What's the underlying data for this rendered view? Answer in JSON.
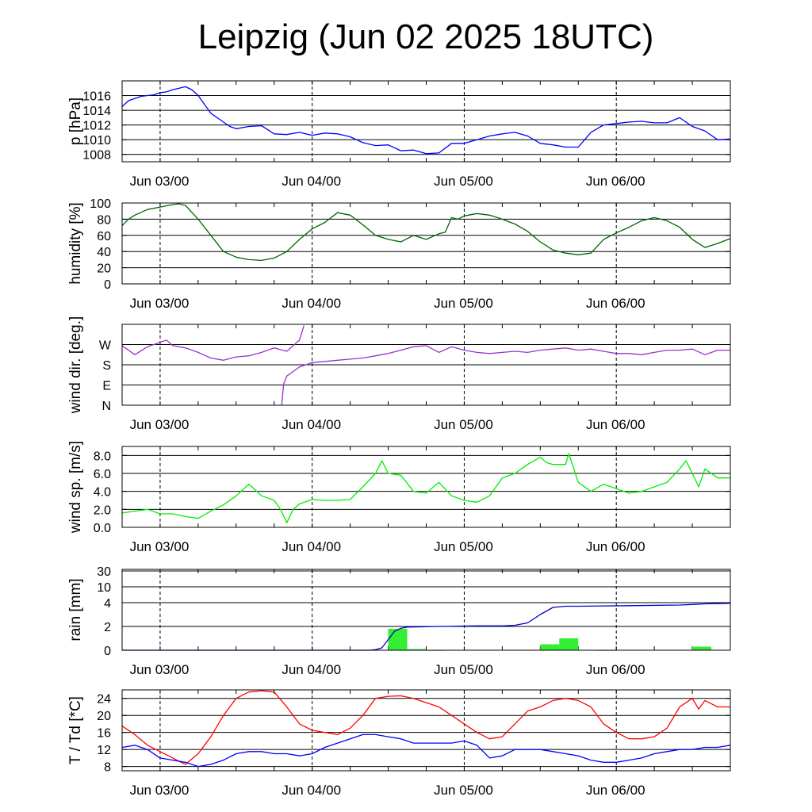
{
  "title": "Leipzig (Jun 02 2025 18UTC)",
  "x_axis": {
    "tick_labels": [
      "Jun 03/00",
      "Jun 04/00",
      "Jun 05/00",
      "Jun 06/00"
    ],
    "x_unit": "hours after Jun 02 18UTC",
    "x_range": [
      0,
      96
    ],
    "major_ticks": [
      6,
      30,
      54,
      78
    ]
  },
  "chart_data": [
    {
      "type": "line",
      "ylabel": "p [hPa]",
      "ylim": [
        1007,
        1018
      ],
      "yticks": [
        1008,
        1010,
        1012,
        1014,
        1016
      ],
      "ytick_labels": [
        "1008",
        "1010",
        "1012",
        "1014",
        "1016"
      ],
      "series": [
        {
          "color": "#0000ff",
          "x": [
            0,
            1,
            2,
            3,
            4,
            5,
            6,
            7,
            8,
            9,
            10,
            11,
            12,
            13,
            14,
            15,
            16,
            17,
            18,
            20,
            22,
            24,
            26,
            28,
            30,
            32,
            34,
            36,
            38,
            40,
            42,
            44,
            46,
            48,
            50,
            52,
            54,
            56,
            58,
            60,
            62,
            64,
            66,
            68,
            70,
            72,
            74,
            76,
            78,
            80,
            82,
            84,
            86,
            88,
            90,
            92,
            94,
            96
          ],
          "y": [
            1014.5,
            1015.3,
            1015.6,
            1015.9,
            1016.0,
            1016.1,
            1016.4,
            1016.5,
            1016.8,
            1017.0,
            1017.2,
            1016.8,
            1016.0,
            1014.8,
            1013.6,
            1013.0,
            1012.4,
            1011.8,
            1011.5,
            1011.8,
            1011.9,
            1010.8,
            1010.7,
            1011.0,
            1010.6,
            1010.9,
            1010.8,
            1010.4,
            1009.6,
            1009.2,
            1009.3,
            1008.5,
            1008.6,
            1008.1,
            1008.2,
            1009.5,
            1009.5,
            1010.0,
            1010.5,
            1010.8,
            1011.0,
            1010.5,
            1009.5,
            1009.3,
            1009.0,
            1009.0,
            1011.0,
            1012.0,
            1012.2,
            1012.4,
            1012.5,
            1012.3,
            1012.3,
            1013.0,
            1011.8,
            1011.2,
            1010.0,
            1010.1
          ]
        }
      ]
    },
    {
      "type": "line",
      "ylabel": "humidity [%]",
      "ylim": [
        0,
        100
      ],
      "yticks": [
        0,
        20,
        40,
        60,
        80,
        100
      ],
      "ytick_labels": [
        "0",
        "20",
        "40",
        "60",
        "80",
        "100"
      ],
      "series": [
        {
          "color": "#006400",
          "x": [
            0,
            1,
            2,
            4,
            6,
            8,
            9,
            10,
            12,
            14,
            16,
            18,
            20,
            22,
            24,
            26,
            28,
            30,
            32,
            34,
            36,
            38,
            40,
            42,
            44,
            46,
            48,
            50,
            51,
            52,
            53,
            54,
            56,
            58,
            60,
            62,
            64,
            66,
            68,
            70,
            72,
            74,
            76,
            78,
            80,
            82,
            84,
            86,
            88,
            90,
            92,
            94,
            96
          ],
          "y": [
            72,
            80,
            85,
            92,
            95,
            98,
            99,
            97,
            80,
            60,
            40,
            33,
            30,
            29,
            32,
            40,
            55,
            68,
            76,
            88,
            85,
            73,
            60,
            55,
            52,
            60,
            55,
            62,
            64,
            82,
            80,
            84,
            87,
            85,
            80,
            74,
            65,
            52,
            42,
            38,
            36,
            38,
            55,
            63,
            70,
            78,
            82,
            78,
            70,
            55,
            45,
            50,
            56
          ]
        }
      ]
    },
    {
      "type": "line",
      "ylabel": "wind dir. [deg.]",
      "ylim": [
        0,
        360
      ],
      "yticks": [
        0,
        90,
        180,
        270
      ],
      "ytick_labels": [
        "N",
        "E",
        "S",
        "W"
      ],
      "series": [
        {
          "color": "#9933cc",
          "segments": [
            {
              "x": [
                0,
                2,
                4,
                6,
                7,
                8,
                10,
                12,
                14,
                16,
                18,
                20,
                22,
                24,
                26,
                28,
                28.7
              ],
              "y": [
                265,
                225,
                260,
                280,
                290,
                265,
                255,
                235,
                210,
                200,
                215,
                220,
                235,
                255,
                240,
                290,
                355
              ]
            },
            {
              "x": [
                25.2,
                25.5,
                26,
                27,
                28,
                30,
                32,
                34,
                36,
                38,
                40,
                42,
                44,
                46,
                48,
                50,
                52,
                54,
                56,
                58,
                60,
                62,
                64,
                66,
                68,
                70,
                72,
                74,
                76,
                78,
                80,
                82,
                84,
                86,
                88,
                90,
                92,
                94,
                96
              ],
              "y": [
                0,
                95,
                130,
                150,
                170,
                190,
                195,
                200,
                205,
                210,
                220,
                230,
                245,
                260,
                265,
                235,
                260,
                245,
                235,
                230,
                235,
                240,
                235,
                245,
                250,
                255,
                245,
                250,
                240,
                230,
                230,
                225,
                235,
                245,
                245,
                250,
                225,
                245,
                245
              ]
            }
          ]
        }
      ]
    },
    {
      "type": "line",
      "ylabel": "wind sp. [m/s]",
      "ylim": [
        0,
        9
      ],
      "yticks": [
        0,
        2,
        4,
        6,
        8
      ],
      "ytick_labels": [
        "0.0",
        "2.0",
        "4.0",
        "6.0",
        "8.0"
      ],
      "series": [
        {
          "color": "#00ee00",
          "x": [
            0,
            2,
            4,
            6,
            8,
            10,
            12,
            14,
            16,
            18,
            20,
            20.5,
            22,
            24,
            25,
            26,
            27,
            28,
            30,
            32,
            34,
            36,
            38,
            40,
            41,
            42,
            44,
            46,
            48,
            50,
            52,
            54,
            56,
            58,
            60,
            62,
            64,
            66,
            67,
            68,
            70,
            70.5,
            72,
            74,
            76,
            78,
            80,
            82,
            84,
            86,
            88,
            89,
            90,
            91,
            92,
            94,
            96
          ],
          "y": [
            1.6,
            1.8,
            2.0,
            1.5,
            1.5,
            1.2,
            1.0,
            1.8,
            2.5,
            3.5,
            4.8,
            4.5,
            3.5,
            3.0,
            2.0,
            0.5,
            2.0,
            2.6,
            3.1,
            3.0,
            3.0,
            3.1,
            4.5,
            6.0,
            7.4,
            6.0,
            5.8,
            4.0,
            3.8,
            5.0,
            3.5,
            3.0,
            2.8,
            3.5,
            5.5,
            6.0,
            7.0,
            7.8,
            7.2,
            7.0,
            7.0,
            8.2,
            5.0,
            4.0,
            4.8,
            4.3,
            3.8,
            4.0,
            4.5,
            5.0,
            6.5,
            7.4,
            6.0,
            4.5,
            6.5,
            5.5,
            5.5
          ]
        }
      ]
    },
    {
      "type": "bar+line",
      "ylabel": "rain [mm]",
      "scale": "non-linear",
      "ylim": [
        0,
        30
      ],
      "yticks": [
        0,
        2,
        4,
        10,
        30
      ],
      "ytick_labels": [
        "0",
        "2",
        "4",
        "10",
        "30"
      ],
      "bars": {
        "color": "#33ee33",
        "bins": [
          {
            "x0": 42,
            "x1": 45,
            "value": 1.8
          },
          {
            "x0": 45,
            "x1": 48,
            "value": 0.1
          },
          {
            "x0": 48,
            "x1": 51,
            "value": 0.02
          },
          {
            "x0": 66,
            "x1": 69,
            "value": 0.5
          },
          {
            "x0": 69,
            "x1": 72,
            "value": 1.0
          },
          {
            "x0": 75,
            "x1": 78,
            "value": 0.02
          },
          {
            "x0": 90,
            "x1": 93,
            "value": 0.3
          }
        ]
      },
      "series": [
        {
          "color": "#0000cc",
          "x": [
            0,
            39,
            40,
            41,
            42,
            43,
            44,
            45,
            50,
            56,
            60,
            62,
            64,
            66,
            68,
            70,
            72,
            80,
            88,
            90,
            92,
            96
          ],
          "y": [
            0,
            0,
            0.05,
            0.2,
            0.9,
            1.6,
            1.85,
            1.95,
            2.0,
            2.05,
            2.05,
            2.1,
            2.3,
            3.0,
            3.6,
            3.7,
            3.7,
            3.75,
            3.8,
            3.85,
            3.9,
            3.95
          ]
        }
      ]
    },
    {
      "type": "line",
      "ylabel": "T / Td [*C]",
      "ylim": [
        7,
        26
      ],
      "yticks": [
        8,
        12,
        16,
        20,
        24
      ],
      "ytick_labels": [
        "8",
        "12",
        "16",
        "20",
        "24"
      ],
      "series": [
        {
          "color": "#ff0000",
          "x": [
            0,
            2,
            4,
            6,
            8,
            9,
            10,
            12,
            14,
            16,
            18,
            20,
            22,
            24,
            26,
            28,
            30,
            32,
            34,
            36,
            38,
            40,
            42,
            44,
            46,
            48,
            50,
            52,
            54,
            56,
            58,
            60,
            62,
            64,
            66,
            68,
            70,
            72,
            74,
            76,
            78,
            80,
            82,
            84,
            86,
            88,
            90,
            91,
            92,
            94,
            96
          ],
          "y": [
            17.5,
            15.5,
            13,
            11.5,
            10,
            9.2,
            8.5,
            11,
            15,
            20,
            24,
            25.5,
            25.8,
            25.5,
            22,
            18,
            16.5,
            16,
            15.5,
            17,
            20,
            24,
            24.5,
            24.6,
            24,
            23,
            22,
            20,
            18,
            16,
            14.5,
            15,
            18,
            21,
            22,
            23.5,
            24,
            23.5,
            22,
            18,
            16,
            14.5,
            14.5,
            15,
            17,
            22,
            24,
            21.5,
            23.5,
            22,
            22
          ]
        },
        {
          "color": "#0000ff",
          "x": [
            0,
            2,
            4,
            6,
            8,
            10,
            12,
            14,
            16,
            18,
            20,
            22,
            24,
            26,
            28,
            30,
            32,
            34,
            36,
            38,
            40,
            42,
            44,
            46,
            48,
            50,
            52,
            54,
            56,
            58,
            60,
            62,
            64,
            66,
            68,
            70,
            72,
            74,
            76,
            78,
            80,
            82,
            84,
            86,
            88,
            90,
            92,
            94,
            96
          ],
          "y": [
            12.5,
            13,
            12,
            10,
            9.5,
            9,
            8,
            8.5,
            9.5,
            11,
            11.5,
            11.5,
            11,
            11,
            10.5,
            11,
            12.5,
            13.5,
            14.5,
            15.5,
            15.5,
            15,
            14.5,
            13.5,
            13.5,
            13.5,
            13.5,
            14,
            13,
            10,
            10.5,
            12,
            12,
            12,
            11.5,
            11,
            10.5,
            9.5,
            9,
            9,
            9.5,
            10,
            11,
            11.5,
            12,
            12,
            12.5,
            12.5,
            13
          ]
        }
      ]
    }
  ]
}
